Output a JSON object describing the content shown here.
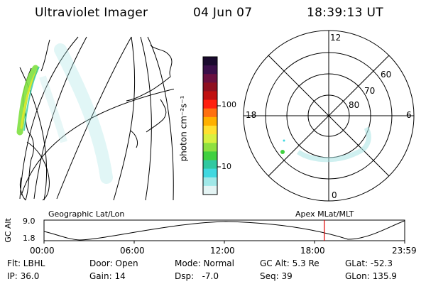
{
  "header": {
    "instrument": "Ultraviolet Imager",
    "date": "04 Jun 07",
    "time": "18:39:13 UT"
  },
  "colorbar": {
    "label": "photon cm⁻²s⁻¹",
    "ticks": [
      "100",
      "10"
    ],
    "colors": [
      "#1a0a2e",
      "#3b0f4a",
      "#6a1040",
      "#8f1020",
      "#c01010",
      "#ff2010",
      "#ff7010",
      "#ffb000",
      "#ffe030",
      "#d8f040",
      "#8ee040",
      "#40d040",
      "#30c8a0",
      "#40d8e0",
      "#a0e8e8",
      "#e4f4f4"
    ]
  },
  "polar": {
    "mlt_labels": {
      "top": "12",
      "left": "18",
      "right": "6",
      "bottom": "0"
    },
    "lat_labels": [
      "60",
      "70",
      "80"
    ]
  },
  "altitude_panel": {
    "ylabel": "GC Alt",
    "y_ticks": [
      "9.0",
      "1.8"
    ],
    "left_title": "Geographic Lat/Lon",
    "right_title": "Apex MLat/MLT",
    "x_ticks": [
      "00:00",
      "06:00",
      "12:00",
      "18:00",
      "23:59"
    ],
    "current_marker_hours": 18.65
  },
  "info": {
    "row1": [
      "Flt: LBHL",
      "Door: Open",
      "Mode: Normal",
      "GC Alt: 5.3 Re",
      "GLat: -52.3"
    ],
    "row2": [
      "IP: 36.0",
      "Gain: 14",
      "Dsp:   -7.0",
      "Seq: 39",
      "GLon: 135.9"
    ]
  },
  "colors": {
    "marker": "#e00000",
    "line": "#000000"
  }
}
